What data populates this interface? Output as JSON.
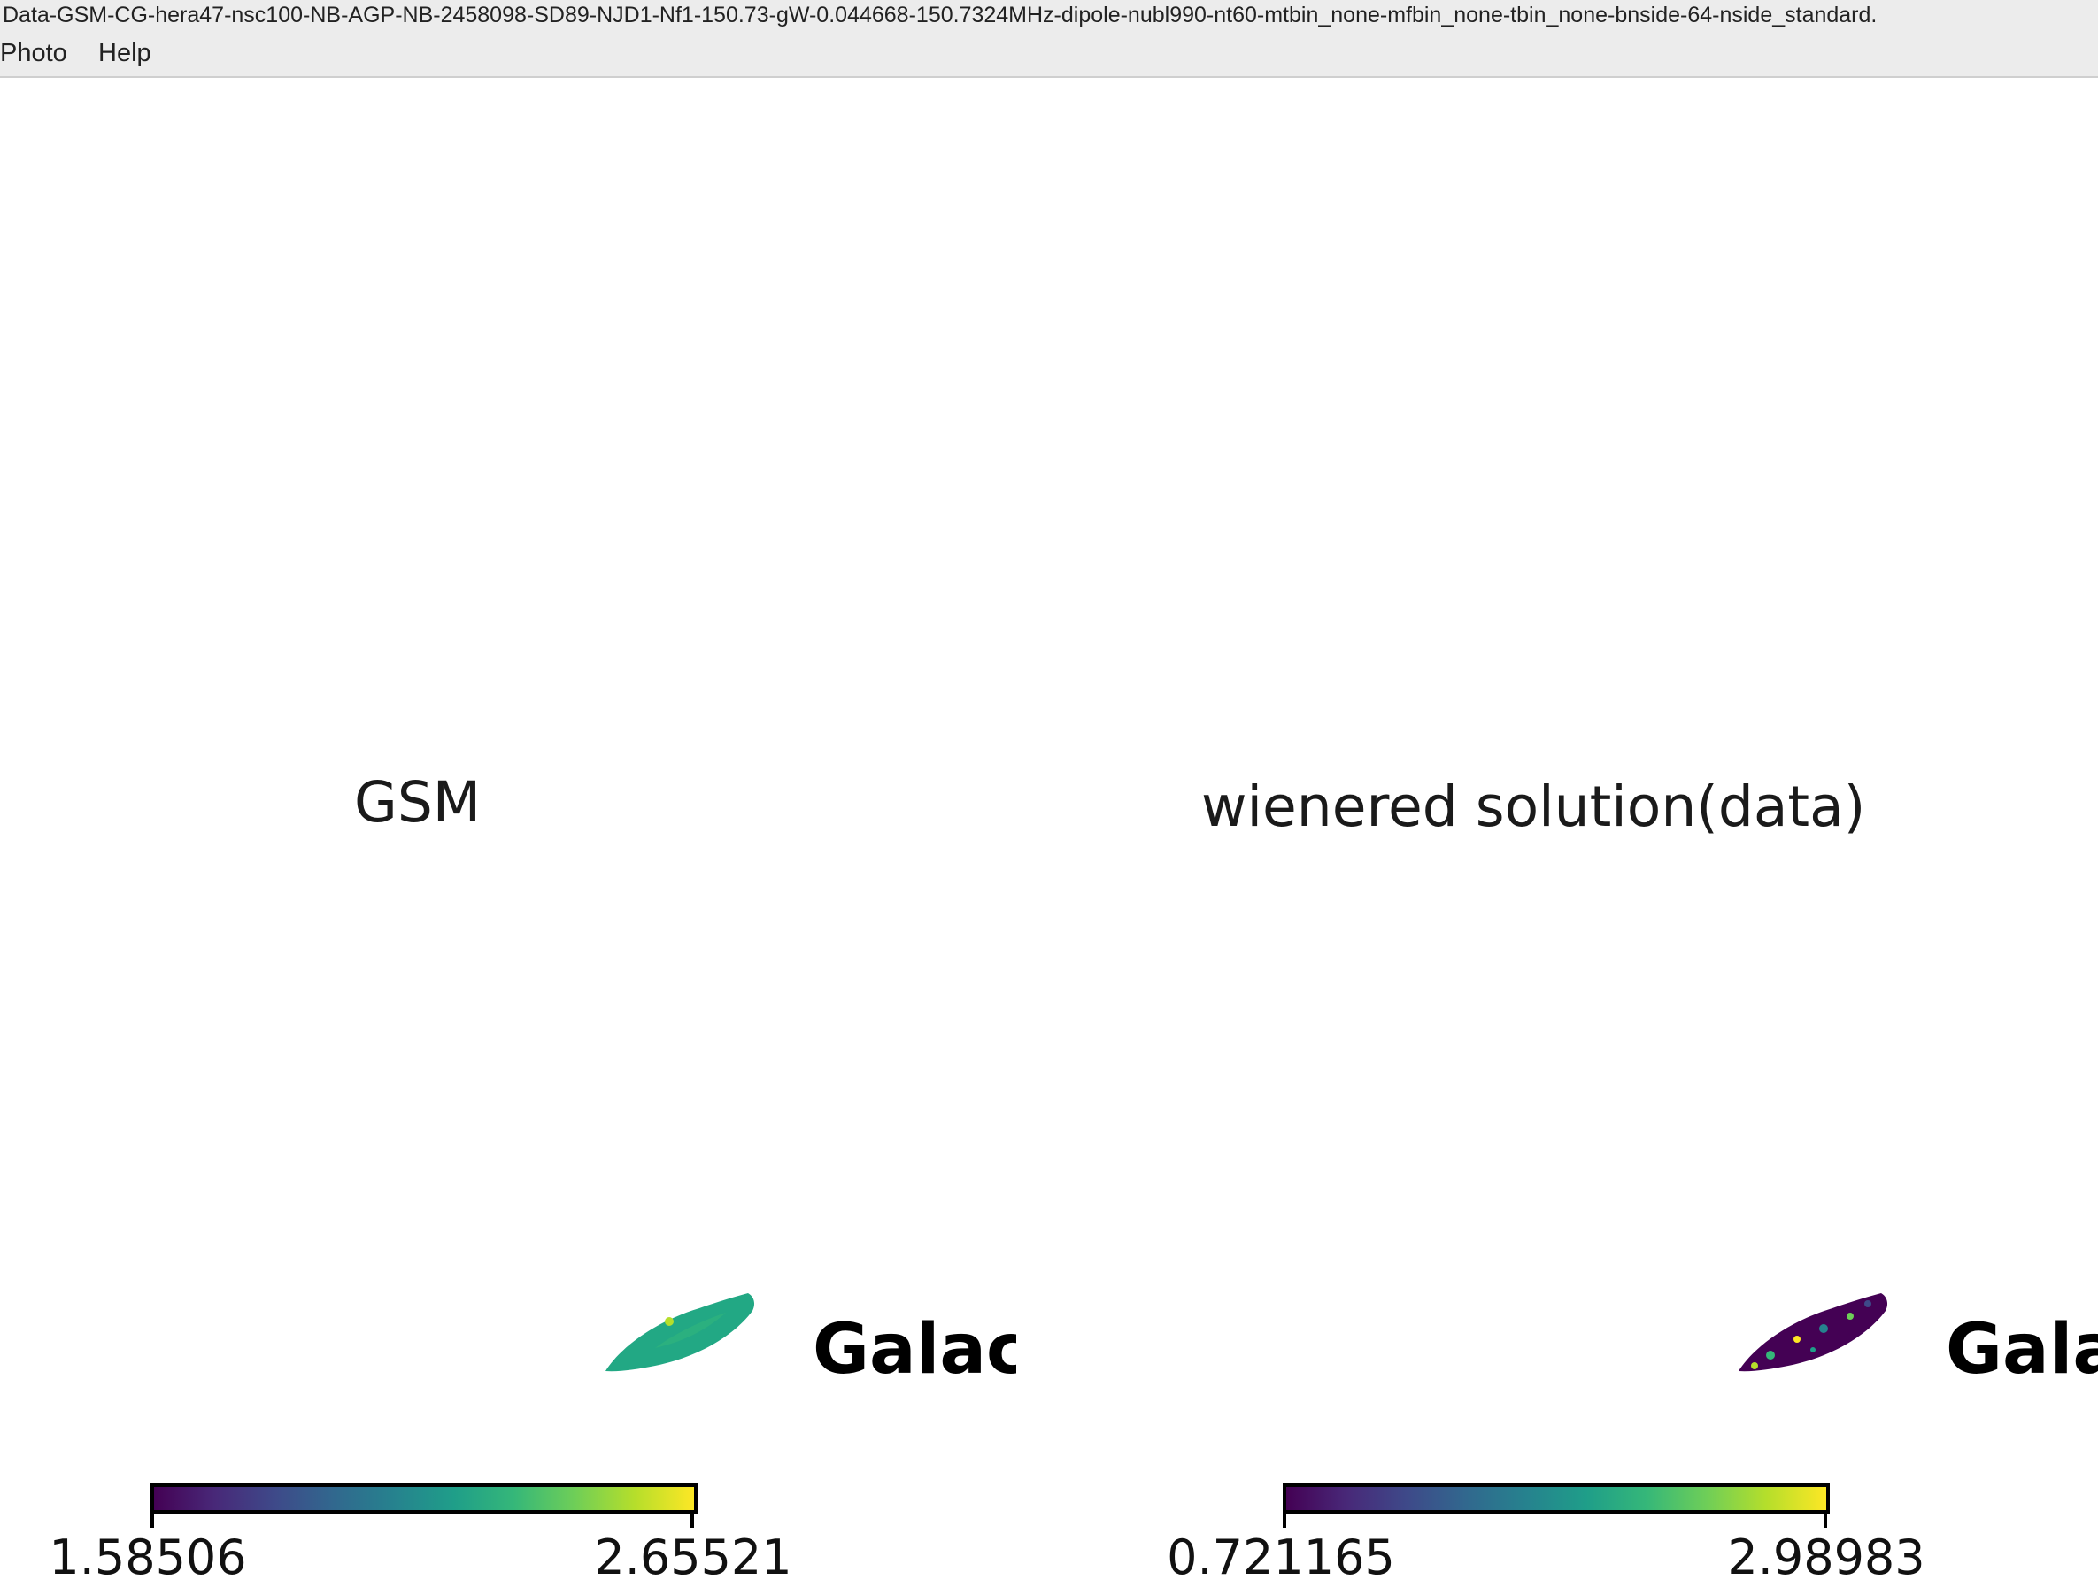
{
  "window": {
    "title": "Data-GSM-CG-hera47-nsc100-NB-AGP-NB-2458098-SD89-NJD1-Nf1-150.73-gW-0.044668-150.7324MHz-dipole-nubl990-nt60-mtbin_none-mfbin_none-tbin_none-bnside-64-nside_standard."
  },
  "menu": {
    "photo": "Photo",
    "help": "Help"
  },
  "panels": {
    "left": {
      "title": "GSM",
      "label": "Galac",
      "colorbar_min": "1.58506",
      "colorbar_max": "2.65521"
    },
    "right": {
      "title": "wienered solution(data)",
      "label": "Gala",
      "colorbar_min": "0.721165",
      "colorbar_max": "2.98983"
    }
  },
  "colors": {
    "colormap": "viridis",
    "window_chrome": "#ececec"
  }
}
